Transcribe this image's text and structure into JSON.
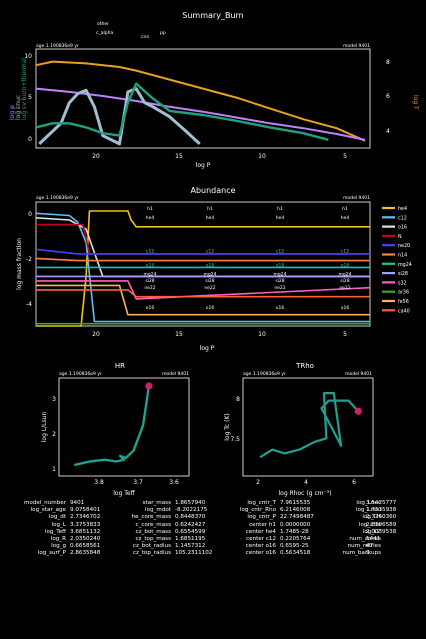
{
  "summary": {
    "title": "Summary_Burn",
    "age_label": "age 1.190836e9 yr",
    "model_label": "model 9401",
    "top_labels": [
      "other",
      "c_alpha",
      "cno",
      "pp"
    ],
    "ylabel_left": [
      "log ρ",
      "log εnuc",
      "log εv burn+thermal"
    ],
    "ylabel_right": "log T",
    "xlabel": "log P",
    "xticks": [
      "20",
      "15",
      "10",
      "5"
    ],
    "yticks_left": [
      "0",
      "5",
      "10"
    ],
    "yticks_right": [
      "4",
      "6",
      "8"
    ],
    "colors": {
      "log_T": "#e8a020",
      "log_rho": "#c080ff",
      "eps_nuc": "#a0c0d0",
      "eps_burn": "#20a080"
    }
  },
  "abundance": {
    "title": "Abundance",
    "age_label": "age 1.190836e9 yr",
    "model_label": "model 9401",
    "ylabel": "log mass fraction",
    "xlabel": "log P",
    "xticks": [
      "20",
      "15",
      "10",
      "5"
    ],
    "yticks": [
      "0",
      "-2",
      "-4"
    ],
    "legend": [
      "he4",
      "c12",
      "o16",
      "N",
      "ne20",
      "n14",
      "mg24",
      "si28",
      "s32",
      "ar36",
      "fe56",
      "ca40"
    ],
    "legend_colors": [
      "#f0c020",
      "#60c0f0",
      "#e0e0e0",
      "#c00020",
      "#4040ff",
      "#ff8040",
      "#20c0a0",
      "#a0a0ff",
      "#ff60c0",
      "#40a040",
      "#ffb060",
      "#ff6040"
    ],
    "line_labels": [
      {
        "text": "h1",
        "col": "#ffffff"
      },
      {
        "text": "he4",
        "col": "#ffffff"
      },
      {
        "text": "c12",
        "col": "#60c0f0"
      },
      {
        "text": "o16",
        "col": "#20c0a0"
      },
      {
        "text": "mg24",
        "col": "#ffffff"
      },
      {
        "text": "si28",
        "col": "#ffffff"
      },
      {
        "text": "ne22",
        "col": "#ffffff"
      },
      {
        "text": "o16",
        "col": "#ffffff"
      }
    ]
  },
  "hr": {
    "title": "HR",
    "age_label": "age 1.190836e9 yr",
    "model_label": "model 9401",
    "ylabel": "log L/Lsun",
    "xlabel": "log Teff",
    "xticks": [
      "3.8",
      "3.7",
      "3.6"
    ],
    "yticks": [
      "1",
      "2",
      "3"
    ]
  },
  "trho": {
    "title": "TRho",
    "age_label": "age 1.190836e9 yr",
    "model_label": "model 9401",
    "ylabel": "log Tc (K)",
    "xlabel": "log Rhoc (g cm⁻³)",
    "xticks": [
      "2",
      "4",
      "6"
    ],
    "yticks": [
      "7.5",
      "8"
    ]
  },
  "stats": [
    [
      "model_number",
      "9401",
      "star_mass",
      "1.8657940",
      "log_cntr_T",
      "7.9615535",
      "log_Lnuc",
      "3.5425777"
    ],
    [
      "log_star_age",
      "9.0758401",
      "log_mdot",
      "-8.2022175",
      "log_cntr_Rho",
      "6.2146008",
      "log_Lneu",
      "1.7335938"
    ],
    [
      "log_dt",
      "2.7346702",
      "he_core_mass",
      "0.8448370",
      "log_cntr_P",
      "22.7498487",
      "log_LH",
      "2.7760360"
    ],
    [
      "log_L",
      "3.3753833",
      "c_core_mass",
      "0.6242427",
      "center h1",
      "0.0000000",
      "log_LHe",
      "2.8206589"
    ],
    [
      "log_Teff",
      "3.6851132",
      "cz_bot_mass",
      "0.6554599",
      "center he4",
      "1.7485-28",
      "log_LZ",
      "2.0039538"
    ],
    [
      "log_R",
      "2.0350240",
      "cz_top_mass",
      "1.6851195",
      "center c12",
      "0.2205764",
      "num_zones",
      "1441"
    ],
    [
      "log_g",
      "0.6658561",
      "cz_bot_radius",
      "1.1457312",
      "center o16",
      "0.6595-25",
      "num_retries",
      "47"
    ],
    [
      "log_surf_P",
      "2.8635848",
      "cz_top_radius",
      "105.2311102",
      "center o16",
      "0.5634518",
      "num_backups",
      "9"
    ]
  ],
  "chart_data": [
    {
      "type": "line",
      "title": "Summary_Burn",
      "xlabel": "log P",
      "xlim": [
        23,
        3
      ],
      "ylim": [
        -1,
        11
      ],
      "ylim_right": [
        3.5,
        9
      ],
      "series": [
        {
          "name": "log T",
          "x": [
            23,
            22,
            20,
            18,
            17,
            15,
            13,
            11,
            9,
            7,
            5,
            3.3
          ],
          "y": [
            8.1,
            8.3,
            8.2,
            8.0,
            7.8,
            7.3,
            6.8,
            6.3,
            5.7,
            5.1,
            4.6,
            3.9
          ]
        },
        {
          "name": "log ρ",
          "x": [
            23,
            21,
            19,
            17,
            15,
            13,
            11,
            9,
            7,
            5,
            3.3
          ],
          "y": [
            6.2,
            5.8,
            5.3,
            4.7,
            4.0,
            3.4,
            2.7,
            2.0,
            1.4,
            0.7,
            0.0
          ]
        },
        {
          "name": "log εnuc",
          "x": [
            22.8,
            21.5,
            21,
            20.5,
            20,
            19.5,
            19,
            18,
            17.5,
            17,
            16.5,
            16,
            15,
            14,
            13.2
          ],
          "y": [
            -0.5,
            2.0,
            4.5,
            5.6,
            6.0,
            4.0,
            0.5,
            -0.5,
            5.8,
            6.2,
            4.5,
            4.0,
            2.8,
            1.0,
            -0.5
          ]
        },
        {
          "name": "log εv",
          "x": [
            23,
            22,
            21,
            20,
            19,
            18,
            17.5,
            17,
            16,
            15,
            13,
            11,
            9,
            7,
            5.5
          ],
          "y": [
            1.5,
            2.0,
            2.0,
            1.5,
            0.8,
            0.5,
            4.5,
            6.8,
            5.0,
            3.5,
            3.0,
            2.3,
            1.5,
            0.8,
            0.0
          ]
        }
      ]
    },
    {
      "type": "line",
      "title": "Abundance",
      "xlabel": "log P",
      "ylabel": "log mass fraction",
      "xlim": [
        23,
        3
      ],
      "ylim": [
        -5.2,
        0.3
      ],
      "series": [
        {
          "name": "he4",
          "x": [
            23,
            20.3,
            20,
            19.8,
            18,
            17.5,
            17.3,
            17,
            3
          ],
          "y": [
            -5.2,
            -5.2,
            -3.0,
            -0.1,
            -0.1,
            -0.1,
            -0.5,
            -0.8,
            -0.8
          ]
        },
        {
          "name": "c12",
          "x": [
            23,
            21,
            20.5,
            20,
            19.5,
            3
          ],
          "y": [
            -0.2,
            -0.3,
            -0.6,
            -1.5,
            -5.0,
            -5.0
          ]
        },
        {
          "name": "o16",
          "x": [
            23,
            21,
            20,
            19,
            3
          ],
          "y": [
            -0.4,
            -0.5,
            -0.9,
            -3.0,
            -3.0
          ]
        },
        {
          "name": "N",
          "x": [
            23,
            20.2,
            20,
            19.8,
            19.5,
            3
          ],
          "y": [
            -0.7,
            -0.7,
            -1.3,
            -2.0,
            -2.0,
            -2.0
          ]
        },
        {
          "name": "ne20",
          "x": [
            23,
            20.5,
            3
          ],
          "y": [
            -1.8,
            -2.0,
            -2.0
          ]
        },
        {
          "name": "n14",
          "x": [
            23,
            20.5,
            3
          ],
          "y": [
            -2.2,
            -2.3,
            -2.3
          ]
        },
        {
          "name": "mg24",
          "x": [
            23,
            3
          ],
          "y": [
            -2.6,
            -2.6
          ]
        },
        {
          "name": "si28",
          "x": [
            23,
            3
          ],
          "y": [
            -3.0,
            -3.0
          ]
        },
        {
          "name": "s32",
          "x": [
            23,
            17.5,
            17,
            3
          ],
          "y": [
            -3.2,
            -3.2,
            -4.0,
            -3.5
          ]
        },
        {
          "name": "ar36",
          "x": [
            23,
            3
          ],
          "y": [
            -5.1,
            -5.1
          ]
        },
        {
          "name": "fe56",
          "x": [
            23,
            18,
            17.5,
            3
          ],
          "y": [
            -3.4,
            -3.4,
            -4.7,
            -4.7
          ]
        },
        {
          "name": "ca40",
          "x": [
            23,
            17.5,
            17,
            3
          ],
          "y": [
            -3.6,
            -3.6,
            -3.9,
            -3.9
          ]
        }
      ]
    },
    {
      "type": "line",
      "title": "HR",
      "xlabel": "log Teff",
      "ylabel": "log L/Lsun",
      "xlim": [
        3.92,
        3.58
      ],
      "ylim": [
        0.9,
        3.6
      ],
      "series": [
        {
          "name": "track",
          "x": [
            3.88,
            3.84,
            3.8,
            3.77,
            3.75,
            3.76,
            3.745,
            3.725,
            3.7,
            3.69,
            3.685
          ],
          "y": [
            1.2,
            1.3,
            1.35,
            1.3,
            1.35,
            1.45,
            1.4,
            1.6,
            2.3,
            3.0,
            3.4
          ]
        },
        {
          "name": "current",
          "x": [
            3.685
          ],
          "y": [
            3.38
          ]
        }
      ]
    },
    {
      "type": "line",
      "title": "TRho",
      "xlabel": "log Rhoc",
      "ylabel": "log Tc",
      "xlim": [
        1.5,
        6.8
      ],
      "ylim": [
        7.1,
        8.4
      ],
      "series": [
        {
          "name": "track",
          "x": [
            2.2,
            2.7,
            3.2,
            3.8,
            4.4,
            4.9,
            4.8,
            5.2,
            5.5,
            4.7,
            5.0,
            5.8,
            6.2
          ],
          "y": [
            7.35,
            7.45,
            7.4,
            7.45,
            7.55,
            7.6,
            8.2,
            8.2,
            7.5,
            8.0,
            8.1,
            8.1,
            7.96
          ]
        },
        {
          "name": "current",
          "x": [
            6.2
          ],
          "y": [
            7.96
          ]
        }
      ]
    }
  ]
}
